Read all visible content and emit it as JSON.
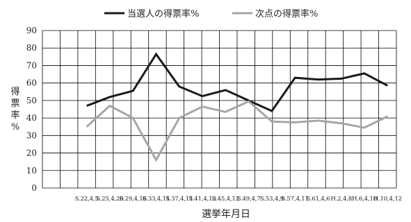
{
  "chart_data": {
    "type": "line",
    "title": "",
    "xlabel": "選挙年月日",
    "ylabel": "得票率%",
    "ylim": [
      0,
      90
    ],
    "ytick_step": 10,
    "grid": true,
    "legend_position": "top-center",
    "categories": [
      "S.22,4,5",
      "S.25,4,20",
      "S.29,4,16",
      "S.33,4,11",
      "S.37,4,11",
      "S.41,4,12",
      "S.45,4,12",
      "S.49,4,7",
      "S.53,4,9",
      "S.57,4,11",
      "S.61,4,6",
      "H.2,4,8",
      "H.6,4,10",
      "H.10,4,12"
    ],
    "series": [
      {
        "name": "当選人の得票率%",
        "color": "#1a1a1a",
        "values": [
          47,
          52,
          55.5,
          76.5,
          58,
          52.5,
          56,
          50,
          44,
          63,
          62,
          62.5,
          65.5,
          58.5
        ]
      },
      {
        "name": "次点の得票率%",
        "color": "#a6a6a6",
        "values": [
          35,
          47,
          40,
          16,
          40,
          46.5,
          43.5,
          49.5,
          38,
          37.5,
          38.5,
          37,
          34.5,
          41
        ]
      }
    ]
  }
}
